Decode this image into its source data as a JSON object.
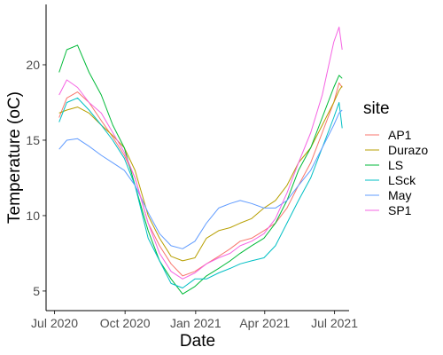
{
  "chart_data": {
    "type": "line",
    "xlabel": "Date",
    "ylabel": "Temperature (oC)",
    "x_ticks": [
      "Jul 2020",
      "Oct 2020",
      "Jan 2021",
      "Apr 2021",
      "Jul 2021"
    ],
    "x_tick_dates": [
      "2020-07-01",
      "2020-10-01",
      "2021-01-01",
      "2021-04-01",
      "2021-07-01"
    ],
    "y_ticks": [
      5,
      10,
      15,
      20
    ],
    "xlim": [
      "2020-06-20",
      "2021-07-20"
    ],
    "ylim": [
      3.7,
      24.0
    ],
    "grid": false,
    "legend": {
      "title": "site",
      "position": "right"
    },
    "series": [
      {
        "name": "AP1",
        "color": "#F8766D",
        "points": [
          [
            "2020-07-07",
            16.5
          ],
          [
            "2020-07-17",
            17.8
          ],
          [
            "2020-07-31",
            18.2
          ],
          [
            "2020-08-15",
            17.5
          ],
          [
            "2020-08-31",
            16.3
          ],
          [
            "2020-09-15",
            15.2
          ],
          [
            "2020-09-30",
            14.0
          ],
          [
            "2020-10-14",
            12.5
          ],
          [
            "2020-10-31",
            9.5
          ],
          [
            "2020-11-15",
            8.0
          ],
          [
            "2020-11-30",
            6.8
          ],
          [
            "2020-12-15",
            6.0
          ],
          [
            "2020-12-31",
            6.3
          ],
          [
            "2021-01-15",
            6.8
          ],
          [
            "2021-01-31",
            7.3
          ],
          [
            "2021-02-15",
            7.8
          ],
          [
            "2021-02-28",
            8.3
          ],
          [
            "2021-03-15",
            8.5
          ],
          [
            "2021-03-31",
            9.0
          ],
          [
            "2021-04-15",
            9.5
          ],
          [
            "2021-04-30",
            10.5
          ],
          [
            "2021-05-15",
            12.0
          ],
          [
            "2021-05-31",
            13.5
          ],
          [
            "2021-06-15",
            15.5
          ],
          [
            "2021-06-30",
            17.5
          ],
          [
            "2021-07-07",
            18.8
          ],
          [
            "2021-07-11",
            18.5
          ]
        ]
      },
      {
        "name": "Durazo",
        "color": "#B79F00",
        "points": [
          [
            "2020-07-07",
            16.8
          ],
          [
            "2020-07-17",
            17.0
          ],
          [
            "2020-07-31",
            17.2
          ],
          [
            "2020-08-15",
            16.8
          ],
          [
            "2020-08-31",
            16.0
          ],
          [
            "2020-09-15",
            15.3
          ],
          [
            "2020-09-30",
            14.5
          ],
          [
            "2020-10-14",
            13.0
          ],
          [
            "2020-10-31",
            10.0
          ],
          [
            "2020-11-15",
            8.5
          ],
          [
            "2020-11-30",
            7.3
          ],
          [
            "2020-12-15",
            7.0
          ],
          [
            "2020-12-31",
            7.2
          ],
          [
            "2021-01-15",
            8.5
          ],
          [
            "2021-01-31",
            9.0
          ],
          [
            "2021-02-15",
            9.2
          ],
          [
            "2021-02-28",
            9.5
          ],
          [
            "2021-03-15",
            9.8
          ],
          [
            "2021-03-31",
            10.5
          ],
          [
            "2021-04-15",
            11.0
          ],
          [
            "2021-04-30",
            12.0
          ],
          [
            "2021-05-15",
            13.5
          ],
          [
            "2021-05-31",
            14.5
          ],
          [
            "2021-06-15",
            16.0
          ],
          [
            "2021-06-30",
            17.5
          ],
          [
            "2021-07-07",
            18.3
          ],
          [
            "2021-07-11",
            18.6
          ]
        ]
      },
      {
        "name": "LS",
        "color": "#00BA38",
        "points": [
          [
            "2020-07-07",
            19.5
          ],
          [
            "2020-07-17",
            21.0
          ],
          [
            "2020-07-31",
            21.3
          ],
          [
            "2020-08-15",
            19.5
          ],
          [
            "2020-08-31",
            18.0
          ],
          [
            "2020-09-15",
            16.0
          ],
          [
            "2020-09-30",
            14.5
          ],
          [
            "2020-10-14",
            12.0
          ],
          [
            "2020-10-31",
            9.0
          ],
          [
            "2020-11-15",
            7.0
          ],
          [
            "2020-11-30",
            5.8
          ],
          [
            "2020-12-15",
            4.8
          ],
          [
            "2020-12-31",
            5.3
          ],
          [
            "2021-01-15",
            6.0
          ],
          [
            "2021-01-31",
            6.5
          ],
          [
            "2021-02-15",
            7.0
          ],
          [
            "2021-02-28",
            7.5
          ],
          [
            "2021-03-15",
            8.0
          ],
          [
            "2021-03-31",
            8.5
          ],
          [
            "2021-04-15",
            9.5
          ],
          [
            "2021-04-30",
            11.0
          ],
          [
            "2021-05-15",
            13.0
          ],
          [
            "2021-05-31",
            14.5
          ],
          [
            "2021-06-15",
            16.5
          ],
          [
            "2021-06-30",
            18.5
          ],
          [
            "2021-07-07",
            19.3
          ],
          [
            "2021-07-11",
            19.1
          ]
        ]
      },
      {
        "name": "LSck",
        "color": "#00BFC4",
        "points": [
          [
            "2020-07-07",
            16.2
          ],
          [
            "2020-07-17",
            17.5
          ],
          [
            "2020-07-31",
            17.8
          ],
          [
            "2020-08-15",
            17.0
          ],
          [
            "2020-08-31",
            16.0
          ],
          [
            "2020-09-15",
            15.0
          ],
          [
            "2020-09-30",
            13.8
          ],
          [
            "2020-10-14",
            12.0
          ],
          [
            "2020-10-31",
            8.5
          ],
          [
            "2020-11-15",
            7.0
          ],
          [
            "2020-11-30",
            5.5
          ],
          [
            "2020-12-15",
            5.2
          ],
          [
            "2020-12-31",
            5.8
          ],
          [
            "2021-01-15",
            5.8
          ],
          [
            "2021-01-31",
            6.2
          ],
          [
            "2021-02-15",
            6.5
          ],
          [
            "2021-02-28",
            6.8
          ],
          [
            "2021-03-15",
            7.0
          ],
          [
            "2021-03-31",
            7.2
          ],
          [
            "2021-04-15",
            8.0
          ],
          [
            "2021-04-30",
            9.5
          ],
          [
            "2021-05-15",
            11.0
          ],
          [
            "2021-05-31",
            12.5
          ],
          [
            "2021-06-15",
            14.5
          ],
          [
            "2021-06-30",
            16.5
          ],
          [
            "2021-07-07",
            17.5
          ],
          [
            "2021-07-11",
            15.8
          ]
        ]
      },
      {
        "name": "May",
        "color": "#619CFF",
        "points": [
          [
            "2020-07-07",
            14.4
          ],
          [
            "2020-07-17",
            15.0
          ],
          [
            "2020-07-31",
            15.1
          ],
          [
            "2020-08-15",
            14.6
          ],
          [
            "2020-08-31",
            14.0
          ],
          [
            "2020-09-15",
            13.5
          ],
          [
            "2020-09-30",
            13.0
          ],
          [
            "2020-10-14",
            12.0
          ],
          [
            "2020-10-31",
            10.2
          ],
          [
            "2020-11-15",
            8.8
          ],
          [
            "2020-11-30",
            8.0
          ],
          [
            "2020-12-15",
            7.8
          ],
          [
            "2020-12-31",
            8.3
          ],
          [
            "2021-01-15",
            9.5
          ],
          [
            "2021-01-31",
            10.5
          ],
          [
            "2021-02-15",
            10.8
          ],
          [
            "2021-02-28",
            11.0
          ],
          [
            "2021-03-15",
            10.8
          ],
          [
            "2021-03-31",
            10.5
          ],
          [
            "2021-04-15",
            10.5
          ],
          [
            "2021-04-30",
            11.0
          ],
          [
            "2021-05-15",
            12.0
          ],
          [
            "2021-05-31",
            13.0
          ],
          [
            "2021-06-15",
            14.5
          ],
          [
            "2021-06-30",
            16.0
          ],
          [
            "2021-07-07",
            16.8
          ],
          [
            "2021-07-11",
            17.0
          ]
        ]
      },
      {
        "name": "SP1",
        "color": "#F564E3",
        "points": [
          [
            "2020-07-07",
            18.0
          ],
          [
            "2020-07-17",
            19.0
          ],
          [
            "2020-07-31",
            18.5
          ],
          [
            "2020-08-15",
            17.5
          ],
          [
            "2020-08-31",
            16.8
          ],
          [
            "2020-09-15",
            15.5
          ],
          [
            "2020-09-30",
            14.2
          ],
          [
            "2020-10-14",
            12.5
          ],
          [
            "2020-10-31",
            9.5
          ],
          [
            "2020-11-15",
            7.5
          ],
          [
            "2020-11-30",
            6.3
          ],
          [
            "2020-12-15",
            5.8
          ],
          [
            "2020-12-31",
            6.2
          ],
          [
            "2021-01-15",
            6.8
          ],
          [
            "2021-01-31",
            7.2
          ],
          [
            "2021-02-15",
            7.5
          ],
          [
            "2021-02-28",
            8.0
          ],
          [
            "2021-03-15",
            8.3
          ],
          [
            "2021-03-31",
            8.8
          ],
          [
            "2021-04-15",
            9.8
          ],
          [
            "2021-04-30",
            11.5
          ],
          [
            "2021-05-15",
            13.5
          ],
          [
            "2021-05-31",
            15.5
          ],
          [
            "2021-06-15",
            18.0
          ],
          [
            "2021-06-30",
            21.5
          ],
          [
            "2021-07-07",
            22.5
          ],
          [
            "2021-07-11",
            21.0
          ]
        ]
      }
    ]
  }
}
